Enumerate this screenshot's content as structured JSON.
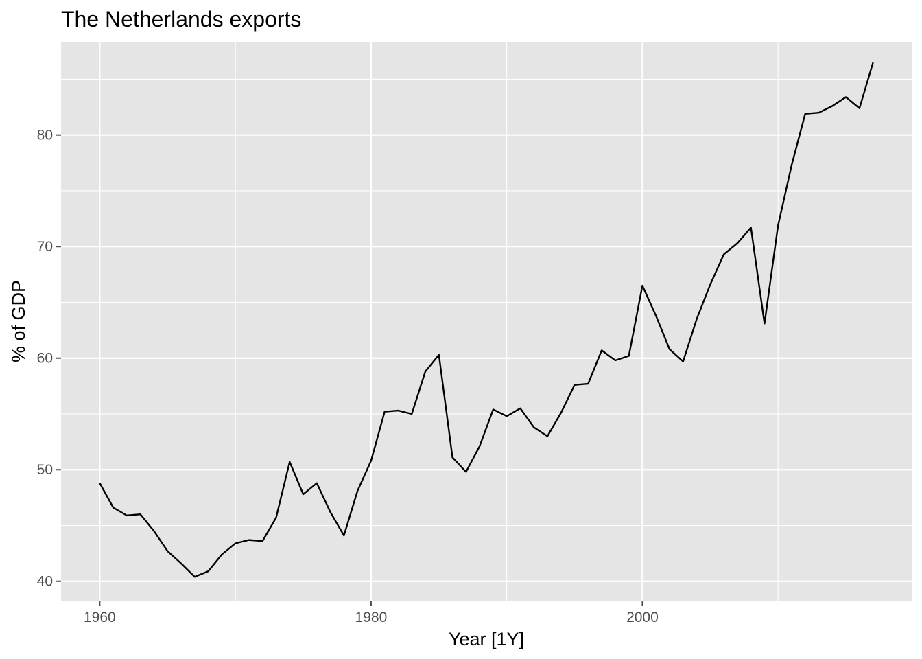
{
  "chart_data": {
    "type": "line",
    "title": "The Netherlands exports",
    "xlabel": "Year [1Y]",
    "ylabel": "% of GDP",
    "xlim": [
      1957.15,
      2019.85
    ],
    "ylim": [
      38.2,
      88.35
    ],
    "x_ticks": [
      1960,
      1980,
      2000
    ],
    "x_minor_ticks": [
      1970,
      1990,
      2010
    ],
    "y_ticks": [
      40,
      50,
      60,
      70,
      80
    ],
    "y_minor_ticks": [
      45,
      55,
      65,
      75,
      85
    ],
    "grid": true,
    "legend": "none",
    "colors": {
      "panel": "#e5e5e5",
      "grid": "#ffffff",
      "line": "#000000",
      "tick": "#4d4d4d"
    },
    "series": [
      {
        "x": [
          1960,
          1961,
          1962,
          1963,
          1964,
          1965,
          1966,
          1967,
          1968,
          1969,
          1970,
          1971,
          1972,
          1973,
          1974,
          1975,
          1976,
          1977,
          1978,
          1979,
          1980,
          1981,
          1982,
          1983,
          1984,
          1985,
          1986,
          1987,
          1988,
          1989,
          1990,
          1991,
          1992,
          1993,
          1994,
          1995,
          1996,
          1997,
          1998,
          1999,
          2000,
          2001,
          2002,
          2003,
          2004,
          2005,
          2006,
          2007,
          2008,
          2009,
          2010,
          2011,
          2012,
          2013,
          2014,
          2015,
          2016,
          2017
        ],
        "values": [
          48.8,
          46.6,
          45.9,
          46.0,
          44.5,
          42.7,
          41.6,
          40.4,
          40.9,
          42.4,
          43.4,
          43.7,
          43.6,
          45.7,
          50.7,
          47.8,
          48.8,
          46.2,
          44.1,
          48.1,
          50.8,
          55.2,
          55.3,
          55.0,
          58.8,
          60.3,
          51.1,
          49.8,
          52.1,
          55.4,
          54.8,
          55.5,
          53.8,
          53.0,
          55.1,
          57.6,
          57.7,
          60.7,
          59.8,
          60.2,
          66.5,
          63.8,
          60.8,
          59.7,
          63.5,
          66.6,
          69.3,
          70.3,
          71.7,
          63.1,
          71.9,
          77.3,
          81.9,
          82.0,
          82.6,
          83.4,
          82.4,
          86.5
        ]
      }
    ]
  }
}
